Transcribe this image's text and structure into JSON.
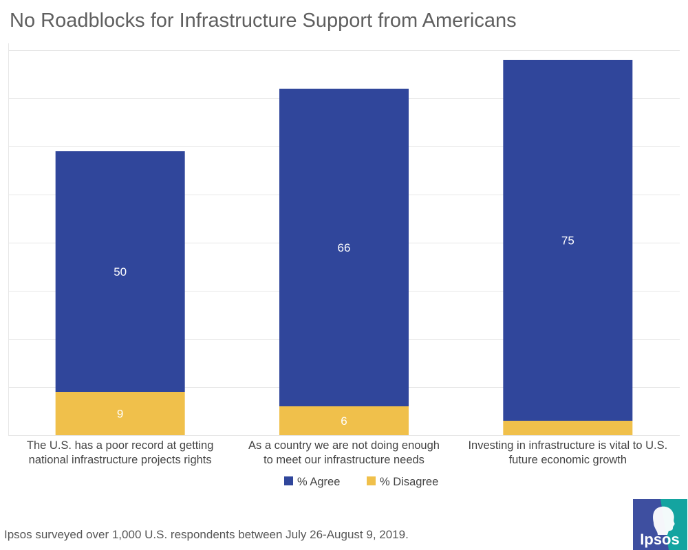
{
  "title": "No Roadblocks for Infrastructure Support from Americans",
  "footnote": "Ipsos surveyed over 1,000 U.S. respondents between July 26-August 9, 2019.",
  "logo": {
    "text": "Ipsos",
    "icon": "ipsos-head-logo"
  },
  "colors": {
    "agree": "#30469b",
    "disagree": "#f0c04b",
    "grid": "#e6e6e6",
    "text": "#444444",
    "logo_blue": "#3e4fa0",
    "logo_teal": "#14a4a0"
  },
  "chart_data": {
    "type": "bar",
    "stacked": true,
    "title": "No Roadblocks for Infrastructure Support from Americans",
    "categories": [
      [
        "The U.S. has a poor record at getting",
        "national infrastructure projects rights"
      ],
      [
        "As a country we are not doing enough",
        "to meet our infrastructure needs"
      ],
      [
        "Investing in infrastructure is vital to U.S.",
        "future economic growth"
      ]
    ],
    "series": [
      {
        "name": "% Agree",
        "values": [
          50,
          66,
          75
        ],
        "labels": [
          "50",
          "66",
          "75"
        ]
      },
      {
        "name": "% Disagree",
        "values": [
          9,
          6,
          3
        ],
        "labels": [
          "9",
          "6",
          ""
        ]
      }
    ],
    "ylim": [
      0,
      80
    ],
    "grid": true,
    "legend": "bottom-center",
    "xlabel": "",
    "ylabel": ""
  }
}
